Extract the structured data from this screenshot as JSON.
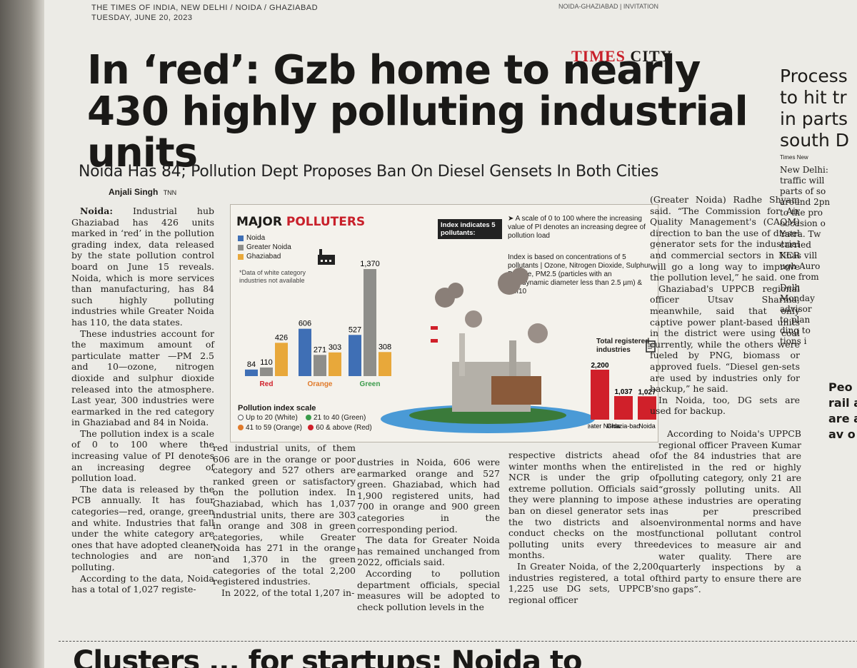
{
  "masthead": {
    "line1": "THE TIMES OF INDIA, NEW DELHI / NOIDA / GHAZIABAD",
    "line2": "TUESDAY, JUNE 20, 2023",
    "topright": "NOIDA-GHAZIABAD | INVITATION"
  },
  "section": {
    "times": "TIMES",
    "city": "CITY"
  },
  "headline": "In ‘red’: Gzb home to nearly 430 highly polluting industrial units",
  "subhead": "Noida Has 84; Pollution Dept Proposes Ban On Diesel Gensets In Both Cities",
  "byline": {
    "name": "Anjali Singh",
    "agency": "TNN"
  },
  "article": {
    "dateline": "Noida:",
    "col1": [
      "Industrial hub Ghaziabad has 426 units marked in ‘red’ in the pollution grading index, data released by the state pollution control board on June 15 reveals. Noida, which is more services than manufacturing, has 84 such highly polluting industries while Greater Noida has 110, the data states.",
      "These industries account for the maximum amount of particulate matter —PM 2.5 and 10—ozone, nitrogen dioxide and sulphur dioxide released into the atmosphere. Last year, 300 industries were earmarked in the red category in Ghaziabad and 84 in Noida.",
      "The pollution index is a scale of 0 to 100 where the increasing value of PI denotes an increasing degree of pollution load.",
      "The data is released by the PCB annually. It has four categories—red, orange, green and white. Industries that fall under the white category are ones that have adopted cleaner technologies and are non-polluting.",
      "According to the data, Noida has a total of 1,027 registe-"
    ],
    "col2": [
      "red industrial units, of them 606 are in the orange or poor category and 527 others are ranked green or satisfactory on the pollution index. In Ghaziabad, which has 1,037 industrial units, there are 303 in orange and 308 in green categories, while Greater Noida has 271 in the orange and 1,370 in the green categories of the total 2,200 registered industries.",
      "In 2022, of the total 1,207 in-"
    ],
    "col3": [
      "dustries in Noida, 606 were earmarked orange and 527 green. Ghaziabad, which had 1,900 registered units, had 700 in orange and 900 green categories in the corresponding period.",
      "The data for Greater Noida has remained unchanged from 2022, officials said.",
      "According to pollution department officials, special measures will be adopted to check pollution levels in the"
    ],
    "col4": [
      "respective districts ahead of winter months when the entire NCR is under the grip of extreme pollution. Officials said they were planning to impose a ban on diesel generator sets in the two districts and also conduct checks on the most polluting units every three months.",
      "In Greater Noida, of the 2,200 industries registered, a total of 1,225 use DG sets, UPPCB's regional officer"
    ],
    "col5": [
      "(Greater Noida) Radhe Shyam said. “The Commission for Air Quality Management's (CAQM) direction to ban the use of diesel generator sets for the industrial and commercial sectors in NCR will go a long way to improve the pollution level,” he said.",
      "Ghaziabad's UPPCB regional officer Utsav Sharma, meanwhile, said that only captive power plant-based units in the district were using coal currently, while the others were fueled by PNG, biomass or approved fuels. “Diesel gen-sets are used by industries only for backup,” he said.",
      "In Noida, too, DG sets are used for backup."
    ],
    "col6": [
      "According to Noida's UPPCB regional officer Praveen Kumar of the 84 industries that are listed in the red or highly polluting category, only 21 are “grossly polluting units. All these industries are operating as per prescribed environmental norms and have functional pollutant control devices to measure air and water quality. There are quarterly inspections by a third party to ensure there are no gaps”."
    ]
  },
  "infographic": {
    "title_a": "MAJOR ",
    "title_b": "POLLUTERS",
    "legend": [
      "Noida",
      "Greater Noida",
      "Ghaziabad"
    ],
    "note": "*Data of white category industries not available",
    "pi_box": "Index indicates 5 pollutants:",
    "pi_text": "➤ A scale of 0 to 100 where the increasing value of PI denotes an increasing degree of pollution load",
    "pi_text2": "Index is based on concentrations of 5 pollutants | Ozone, Nitrogen Dioxide, Sulphur Dioxide, PM2.5 (particles with an aerodynamic diameter less than 2.5 µm) & PM10",
    "scale_title": "Pollution index scale",
    "scale": [
      "Up to 20 (White)",
      "21 to 40 (Green)",
      "41 to 59 (Orange)",
      "60 & above (Red)"
    ],
    "total_title": "Total registered industries"
  },
  "chart_data": [
    {
      "type": "bar",
      "categories": [
        "Red",
        "Orange",
        "Green"
      ],
      "series": [
        {
          "name": "Noida",
          "values": [
            84,
            606,
            527
          ]
        },
        {
          "name": "Greater Noida",
          "values": [
            110,
            271,
            1370
          ]
        },
        {
          "name": "Ghaziabad",
          "values": [
            426,
            303,
            308
          ]
        }
      ],
      "colors": [
        "#3f6fb5",
        "#8e8e8a",
        "#e8a83a"
      ]
    },
    {
      "type": "bar",
      "title": "Total registered industries",
      "categories": [
        "Greater Noida",
        "Ghazia-bad",
        "Noida"
      ],
      "values": [
        2200,
        1037,
        1027
      ],
      "labels": [
        "2,200",
        "1,037",
        "1,027"
      ],
      "colors": [
        "#d0202a"
      ]
    }
  ],
  "colors": {
    "red": "#d0202a",
    "noida": "#3f6fb5",
    "greater_noida": "#8e8e8a",
    "ghaziabad": "#e8a83a",
    "green": "#3a9b4b",
    "orange": "#e07a2a"
  },
  "footer": {
    "headline": "Clusters ... for startups: Noida to"
  },
  "side": {
    "headline": "Process to hit tr in parts south D",
    "byline": "Times New",
    "text": [
      "New Delhi:",
      "traffic will",
      "parts of so",
      "around 2pn",
      "to the pro",
      "occasion o",
      "Yatra. Tw",
      "carried",
      "Khas vill",
      "ugh Auro",
      "one from",
      "Delh",
      "Monday",
      "advisor",
      "to plan",
      "ding to",
      "tions i"
    ],
    "bottom": "Peo rail air are alt av o"
  }
}
